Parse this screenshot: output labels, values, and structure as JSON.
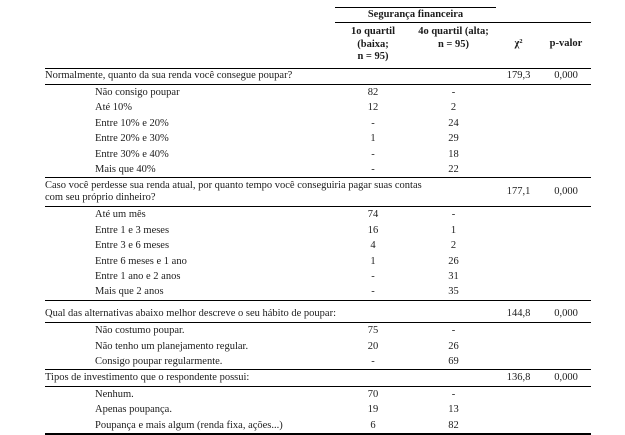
{
  "table": {
    "group_header": "Segurança financeira",
    "columns": {
      "col1": "1o quartil (baixa;\nn = 95)",
      "col2": "4o quartil (alta;\nn = 95)",
      "chi": "χ²",
      "p": "p-valor"
    },
    "sections": [
      {
        "question": "Normalmente, quanto da sua renda você consegue poupar?",
        "chi2": "179,3",
        "p": "0,000",
        "rows": [
          {
            "label": "Não consigo poupar",
            "q1": "82",
            "q4": "-"
          },
          {
            "label": "Até 10%",
            "q1": "12",
            "q4": "2"
          },
          {
            "label": "Entre 10% e 20%",
            "q1": "-",
            "q4": "24"
          },
          {
            "label": "Entre 20% e 30%",
            "q1": "1",
            "q4": "29"
          },
          {
            "label": "Entre 30% e 40%",
            "q1": "-",
            "q4": "18"
          },
          {
            "label": "Mais que 40%",
            "q1": "-",
            "q4": "22"
          }
        ]
      },
      {
        "question": "Caso você perdesse sua renda atual, por quanto tempo você conseguiria pagar suas contas com seu próprio dinheiro?",
        "chi2": "177,1",
        "p": "0,000",
        "rows": [
          {
            "label": "Até um mês",
            "q1": "74",
            "q4": "-"
          },
          {
            "label": "Entre 1 e 3 meses",
            "q1": "16",
            "q4": "1"
          },
          {
            "label": "Entre 3 e 6 meses",
            "q1": "4",
            "q4": "2"
          },
          {
            "label": "Entre 6 meses e 1 ano",
            "q1": "1",
            "q4": "26"
          },
          {
            "label": "Entre 1 ano e 2 anos",
            "q1": "-",
            "q4": "31"
          },
          {
            "label": "Mais que 2 anos",
            "q1": "-",
            "q4": "35"
          }
        ]
      },
      {
        "question": "Qual das alternativas abaixo melhor descreve o seu hábito de poupar:",
        "chi2": "144,8",
        "p": "0,000",
        "rows": [
          {
            "label": "Não costumo poupar.",
            "q1": "75",
            "q4": "-"
          },
          {
            "label": "Não tenho um planejamento regular.",
            "q1": "20",
            "q4": "26"
          },
          {
            "label": "Consigo poupar regularmente.",
            "q1": "-",
            "q4": "69"
          }
        ]
      },
      {
        "question": "Tipos de investimento que o respondente possui:",
        "chi2": "136,8",
        "p": "0,000",
        "rows": [
          {
            "label": "Nenhum.",
            "q1": "70",
            "q4": "-"
          },
          {
            "label": "Apenas poupança.",
            "q1": "19",
            "q4": "13"
          },
          {
            "label": "Poupança e mais algum (renda fixa, ações...)",
            "q1": "6",
            "q4": "82"
          }
        ]
      }
    ]
  }
}
